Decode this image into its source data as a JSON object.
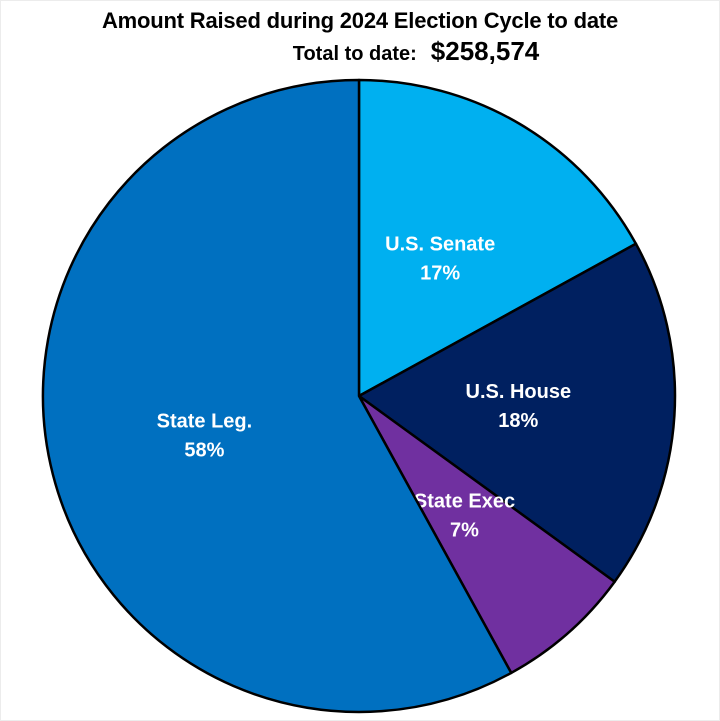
{
  "title": {
    "line1": "Amount Raised during 2024 Election Cycle to date",
    "line2_label": "Total to date:",
    "line2_value": "$258,574"
  },
  "colors": {
    "background": "#ffffff",
    "outline": "#000000",
    "title_text": "#000000",
    "slice_label_text": "#ffffff"
  },
  "chart_data": {
    "type": "pie",
    "title": "Amount Raised during 2024 Election Cycle to date",
    "subtitle": "Total to date: $258,574",
    "total_to_date": "$258,574",
    "start_angle_deg": 0,
    "direction": "clockwise",
    "legend": "none",
    "labels_inside": true,
    "slices": [
      {
        "label": "U.S. Senate",
        "pct": 17,
        "pct_label": "17%",
        "color": "#00B0F0"
      },
      {
        "label": "U.S. House",
        "pct": 18,
        "pct_label": "18%",
        "color": "#002060"
      },
      {
        "label": "State Exec",
        "pct": 7,
        "pct_label": "7%",
        "color": "#7030A0"
      },
      {
        "label": "State Leg.",
        "pct": 58,
        "pct_label": "58%",
        "color": "#0070C0"
      }
    ]
  }
}
